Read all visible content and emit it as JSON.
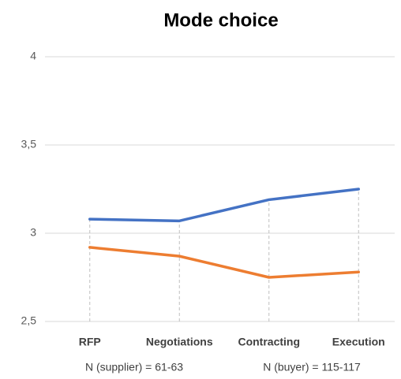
{
  "chart_data": {
    "type": "line",
    "title": "Mode choice",
    "categories": [
      "RFP",
      "Negotiations",
      "Contracting",
      "Execution"
    ],
    "series": [
      {
        "color": "#4472c4",
        "values": [
          3.08,
          3.07,
          3.19,
          3.25
        ]
      },
      {
        "color": "#ed7d31",
        "values": [
          2.92,
          2.87,
          2.75,
          2.78
        ]
      }
    ],
    "ylim": [
      2.5,
      4
    ],
    "yticks": [
      {
        "value": 2.5,
        "label": "2,5"
      },
      3,
      {
        "value": 3.5,
        "label": "3,5"
      },
      4
    ],
    "grid": true,
    "drop_lines": true,
    "annotations": [
      "N (supplier) = 61-63",
      "N (buyer) = 115-117"
    ]
  }
}
